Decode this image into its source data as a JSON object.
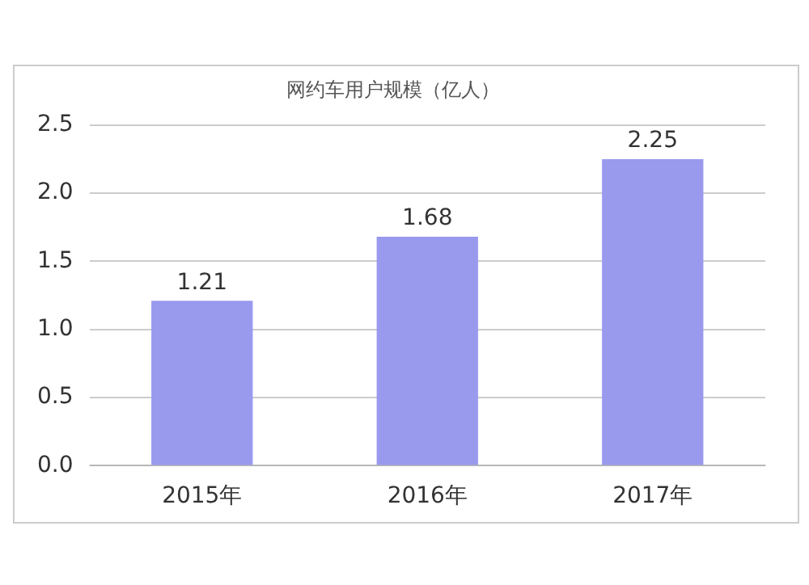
{
  "chart_data": {
    "type": "bar",
    "title": "网约车用户规模（亿人）",
    "categories": [
      "2015年",
      "2016年",
      "2017年"
    ],
    "values": [
      1.21,
      1.68,
      2.25
    ],
    "color": "#9999ee",
    "ylim": [
      0,
      2.5
    ],
    "yticks": [
      {
        "value": 0,
        "label": "0.0"
      },
      {
        "value": 0.5,
        "label": "0.5"
      },
      {
        "value": 1,
        "label": "1.0"
      },
      {
        "value": 1.5,
        "label": "1.5"
      },
      {
        "value": 2,
        "label": "2.0"
      },
      {
        "value": 2.5,
        "label": "2.5"
      }
    ],
    "grid": "y",
    "data_labels": true
  }
}
